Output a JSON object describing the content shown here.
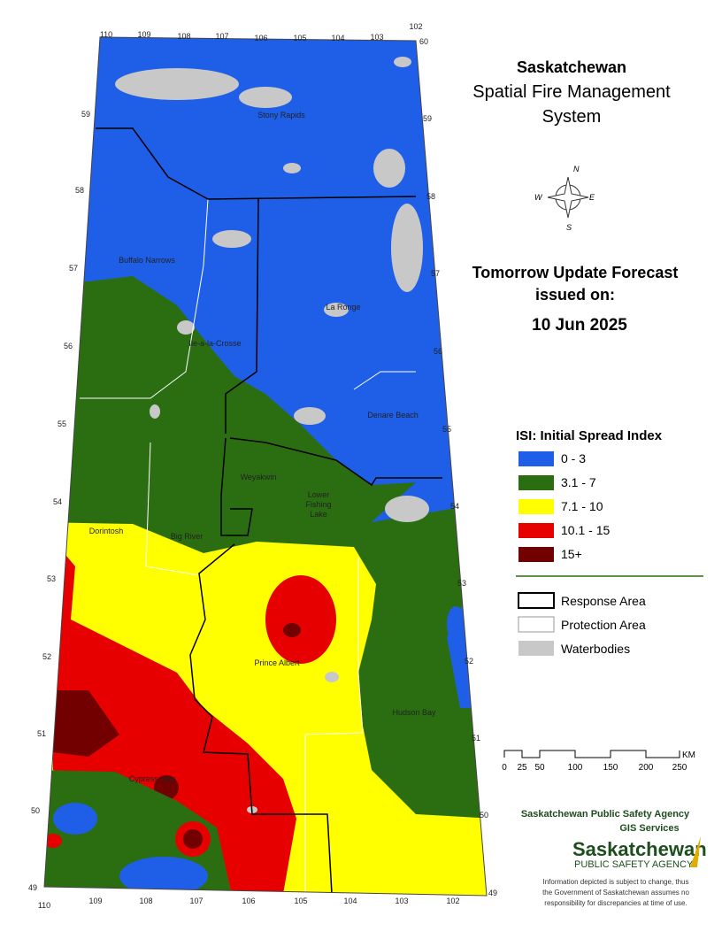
{
  "title": {
    "line1": "Saskatchewan",
    "line2": "Spatial Fire Management",
    "line3": "System"
  },
  "forecast": {
    "line1": "Tomorrow Update Forecast",
    "line2": "issued on:",
    "date": "10 Jun 2025"
  },
  "legend": {
    "title": "ISI: Initial Spread Index",
    "items": [
      {
        "label": "0 - 3",
        "color": "#1f5fe8"
      },
      {
        "label": "3.1 - 7",
        "color": "#2b6e12"
      },
      {
        "label": "7.1 - 10",
        "color": "#ffff00"
      },
      {
        "label": "10.1 - 15",
        "color": "#e60000"
      },
      {
        "label": "15+",
        "color": "#730000"
      }
    ],
    "boundaries": [
      "Response Area",
      "Protection Area",
      "Waterbodies"
    ]
  },
  "compass": [
    "N",
    "W",
    "E",
    "S"
  ],
  "scale": {
    "labels": [
      "0",
      "25",
      "50",
      "100",
      "150",
      "200",
      "250"
    ],
    "unit": "KM"
  },
  "agency": {
    "line1": "Saskatchewan Public Safety Agency",
    "line2": "GIS  Services"
  },
  "logo": {
    "name": "Saskatchewan",
    "sub": "PUBLIC SAFETY AGENCY"
  },
  "disclaimer": [
    "Information depicted is subject to change, thus",
    "the Government of Saskatchewan assumes no",
    "responsibility for discrepancies at time of use."
  ],
  "places": [
    "Stony Rapids",
    "Buffalo Narrows",
    "La Ronge",
    "Ile-a-la-Crosse",
    "Denare Beach",
    "Weyakwin",
    "Lower Fishing Lake",
    "Dorintosh",
    "Big River",
    "Prince Albert",
    "Hudson Bay",
    "Cypress Hills"
  ],
  "longitudes": {
    "top": [
      "110",
      "109",
      "108",
      "107",
      "106",
      "105",
      "104",
      "103",
      "102"
    ],
    "bottom": [
      "110",
      "109",
      "108",
      "107",
      "106",
      "105",
      "104",
      "103",
      "102"
    ]
  },
  "latitudes": {
    "left": [
      "59",
      "58",
      "57",
      "56",
      "55",
      "54",
      "53",
      "52",
      "51",
      "50",
      "49"
    ],
    "right": [
      "60",
      "59",
      "58",
      "57",
      "56",
      "55",
      "54",
      "53",
      "52",
      "51",
      "50",
      "49"
    ]
  }
}
